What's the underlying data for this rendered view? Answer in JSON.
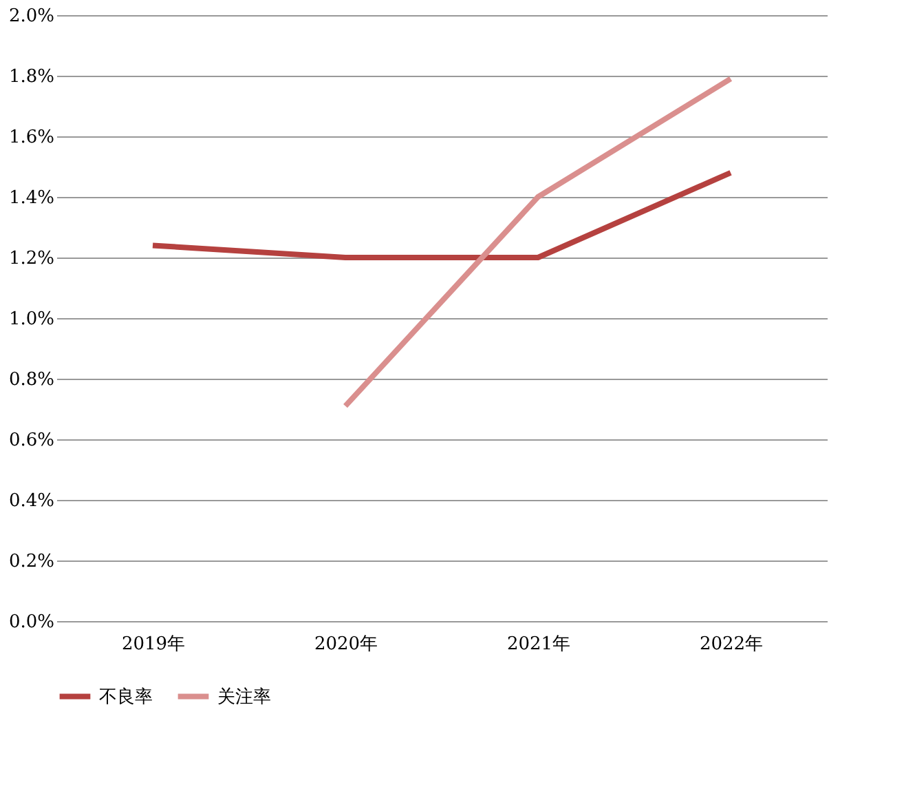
{
  "chart_data": {
    "type": "line",
    "categories": [
      "2019年",
      "2020年",
      "2021年",
      "2022年"
    ],
    "series": [
      {
        "name": "不良率",
        "color": "#b5413f",
        "values": [
          1.24,
          1.2,
          1.2,
          1.48
        ]
      },
      {
        "name": "关注率",
        "color": "#da8f8e",
        "values": [
          null,
          0.71,
          1.4,
          1.79
        ]
      }
    ],
    "ylim": [
      0,
      2.0
    ],
    "yticks": [
      {
        "value": 0,
        "label": "0.0%"
      },
      {
        "value": 0.2,
        "label": "0.2%"
      },
      {
        "value": 0.4,
        "label": "0.4%"
      },
      {
        "value": 0.6,
        "label": "0.6%"
      },
      {
        "value": 0.8,
        "label": "0.8%"
      },
      {
        "value": 1.0,
        "label": "1.0%"
      },
      {
        "value": 1.2,
        "label": "1.2%"
      },
      {
        "value": 1.4,
        "label": "1.4%"
      },
      {
        "value": 1.6,
        "label": "1.6%"
      },
      {
        "value": 1.8,
        "label": "1.8%"
      },
      {
        "value": 2.0,
        "label": "2.0%"
      }
    ],
    "grid": "y",
    "legend": "bottom",
    "marker": "none",
    "line_style": "solid"
  }
}
